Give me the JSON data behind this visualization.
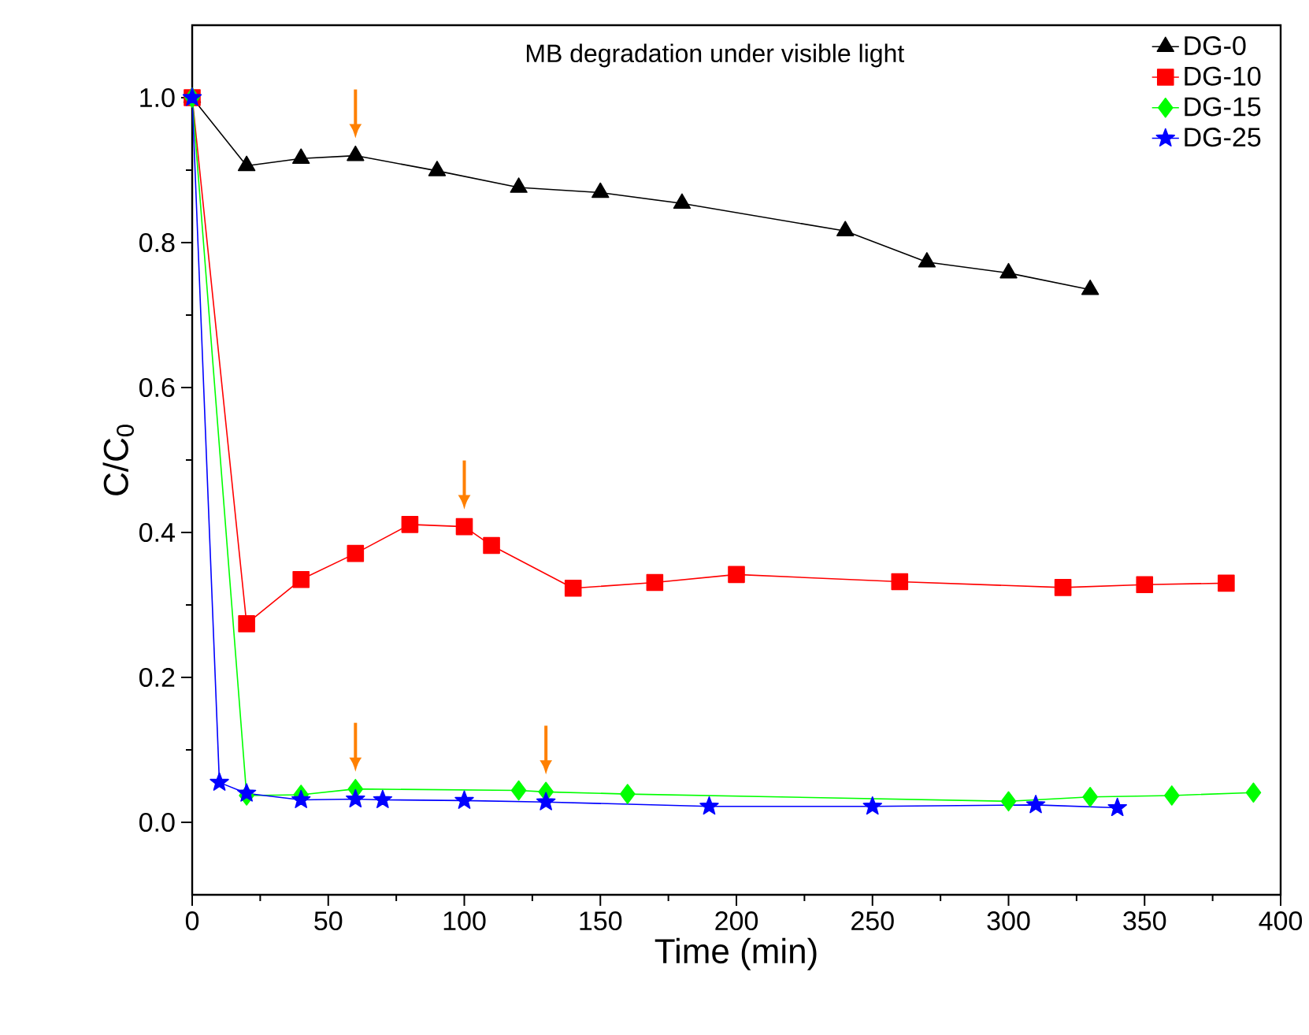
{
  "chart_data": {
    "type": "line",
    "title": "MB degradation under visible light",
    "xlabel": "Time (min)",
    "ylabel": "C/C$_{0}$",
    "xlim": [
      0,
      400
    ],
    "xticks": [
      0,
      50,
      100,
      150,
      200,
      250,
      300,
      350,
      400
    ],
    "ylim": [
      -0.1,
      1.1
    ],
    "yticks": [
      {
        "value": 0,
        "label": "0.0"
      },
      {
        "value": 0.2,
        "label": "0.2"
      },
      {
        "value": 0.4,
        "label": "0.4"
      },
      {
        "value": 0.6,
        "label": "0.6"
      },
      {
        "value": 0.8,
        "label": "0.8"
      },
      {
        "value": 1.0,
        "label": "1.0"
      }
    ],
    "legend": "top right",
    "line_style": "solid",
    "grid": false,
    "series": [
      {
        "name": "DG-0",
        "color": "#000000",
        "marker": "triangle",
        "x": [
          0,
          20,
          40,
          60,
          90,
          120,
          150,
          180,
          240,
          270,
          300,
          330
        ],
        "values": [
          1.0,
          0.906,
          0.916,
          0.92,
          0.899,
          0.876,
          0.869,
          0.854,
          0.816,
          0.773,
          0.758,
          0.735
        ]
      },
      {
        "name": "DG-10",
        "color": "#ff0000",
        "marker": "square",
        "x": [
          0,
          20,
          40,
          60,
          80,
          100,
          110,
          140,
          170,
          200,
          260,
          320,
          350,
          380
        ],
        "values": [
          1.0,
          0.274,
          0.335,
          0.371,
          0.411,
          0.408,
          0.382,
          0.323,
          0.331,
          0.342,
          0.332,
          0.324,
          0.328,
          0.33
        ]
      },
      {
        "name": "DG-15",
        "color": "#00ff00",
        "marker": "diamond",
        "x": [
          0,
          20,
          40,
          60,
          120,
          130,
          160,
          300,
          330,
          360,
          390
        ],
        "values": [
          1.0,
          0.037,
          0.038,
          0.046,
          0.044,
          0.042,
          0.039,
          0.029,
          0.035,
          0.037,
          0.041
        ]
      },
      {
        "name": "DG-25",
        "color": "#0000ff",
        "marker": "star",
        "x": [
          0,
          10,
          20,
          40,
          60,
          70,
          100,
          130,
          190,
          250,
          310,
          340
        ],
        "values": [
          1.0,
          0.055,
          0.04,
          0.031,
          0.032,
          0.031,
          0.03,
          0.028,
          0.022,
          0.022,
          0.024,
          0.02
        ]
      }
    ]
  }
}
